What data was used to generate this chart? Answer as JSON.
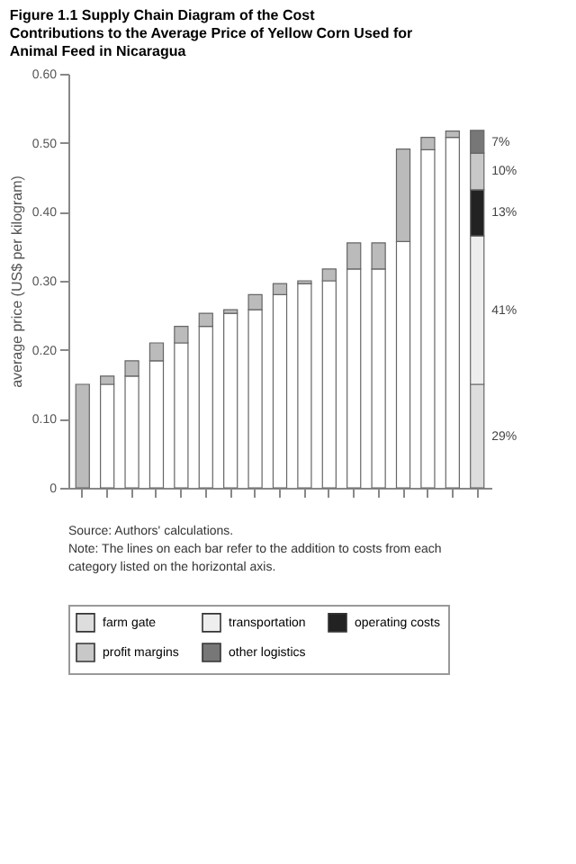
{
  "chart_data": {
    "type": "bar",
    "title": "Figure 1.1   Supply Chain Diagram of the Cost Contributions to the Average Price of Yellow Corn Used for Animal Feed in Nicaragua",
    "ylabel": "average price (US$ per kilogram)",
    "categories": [
      null,
      null,
      null,
      null,
      null,
      null,
      null,
      null,
      null,
      null,
      null,
      null,
      null,
      null,
      null,
      null,
      null
    ],
    "stacked": true,
    "series": [
      {
        "color": "#ffffff",
        "values": [
          null,
          0.15,
          0.162,
          0.184,
          0.21,
          0.234,
          0.253,
          0.258,
          0.28,
          0.296,
          0.3,
          0.317,
          0.317,
          0.357,
          0.49,
          0.508,
          null
        ]
      },
      {
        "color": "#bbbbbb",
        "values": [
          0.15,
          0.012,
          0.022,
          0.026,
          0.024,
          0.019,
          0.005,
          0.022,
          0.016,
          0.004,
          0.017,
          0.038,
          0.038,
          0.134,
          0.018,
          0.009,
          null
        ]
      },
      {
        "name": "farm gate",
        "color": "#dddddd",
        "values": [
          null,
          null,
          null,
          null,
          null,
          null,
          null,
          null,
          null,
          null,
          null,
          null,
          null,
          null,
          null,
          null,
          0.15
        ]
      },
      {
        "name": "transportation",
        "color": "#eeeeee",
        "values": [
          null,
          null,
          null,
          null,
          null,
          null,
          null,
          null,
          null,
          null,
          null,
          null,
          null,
          null,
          null,
          null,
          0.215
        ]
      },
      {
        "name": "operating costs",
        "color": "#222222",
        "values": [
          null,
          null,
          null,
          null,
          null,
          null,
          null,
          null,
          null,
          null,
          null,
          null,
          null,
          null,
          null,
          null,
          0.067
        ]
      },
      {
        "name": "profit margins",
        "color": "#c8c8c8",
        "values": [
          null,
          null,
          null,
          null,
          null,
          null,
          null,
          null,
          null,
          null,
          null,
          null,
          null,
          null,
          null,
          null,
          0.053
        ]
      },
      {
        "name": "other logistics",
        "color": "#777777",
        "values": [
          null,
          null,
          null,
          null,
          null,
          null,
          null,
          null,
          null,
          null,
          null,
          null,
          null,
          null,
          null,
          null,
          0.033
        ]
      }
    ],
    "ylim": [
      0,
      0.6
    ],
    "yticks": [
      {
        "value": 0,
        "label": "0"
      },
      {
        "value": 0.1,
        "label": "0.10"
      },
      {
        "value": 0.2,
        "label": "0.20"
      },
      {
        "value": 0.3,
        "label": "0.30"
      },
      {
        "value": 0.4,
        "label": "0.40"
      },
      {
        "value": 0.5,
        "label": "0.50"
      },
      {
        "value": 0.6,
        "label": "0.60"
      }
    ],
    "grid": false,
    "legend": "bottom",
    "annotations": [
      "29%",
      "41%",
      "13%",
      "10%",
      "7%",
      "Source: Authors' calculations.",
      "Note: The lines on each bar refer to the addition to costs from each category listed on the horizontal axis."
    ]
  }
}
